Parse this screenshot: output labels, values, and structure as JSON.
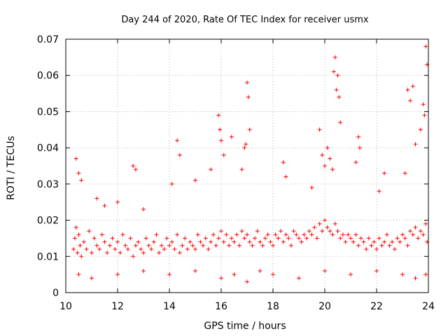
{
  "chart_data": {
    "type": "scatter",
    "title": "Day 244 of 2020, Rate Of TEC Index for receiver usmx",
    "xlabel": "GPS time / hours",
    "ylabel": "ROTI / TECUs",
    "xlim": [
      10,
      24
    ],
    "ylim": [
      0,
      0.07
    ],
    "x_ticks": [
      10,
      12,
      14,
      16,
      18,
      20,
      22,
      24
    ],
    "x_tick_labels": [
      "10",
      "12",
      "14",
      "16",
      "18",
      "20",
      "22",
      "24"
    ],
    "y_ticks": [
      0,
      0.01,
      0.02,
      0.03,
      0.04,
      0.05,
      0.06,
      0.07
    ],
    "y_tick_labels": [
      "0",
      "0.01",
      "0.02",
      "0.03",
      "0.04",
      "0.05",
      "0.06",
      "0.07"
    ],
    "grid": true,
    "marker": "+",
    "series": [
      {
        "name": "ROTI",
        "color": "#ff0000",
        "x": [
          10.3,
          10.35,
          10.4,
          10.45,
          10.5,
          10.55,
          10.6,
          10.7,
          10.8,
          10.9,
          11.0,
          11.1,
          11.2,
          11.3,
          11.4,
          11.5,
          11.6,
          11.7,
          11.8,
          11.9,
          12.0,
          12.1,
          12.2,
          12.3,
          12.4,
          12.5,
          12.6,
          12.7,
          12.8,
          12.9,
          13.0,
          13.1,
          13.2,
          13.3,
          13.4,
          13.5,
          13.6,
          13.7,
          13.8,
          13.9,
          14.0,
          14.1,
          14.2,
          14.3,
          14.4,
          14.5,
          14.6,
          14.7,
          14.8,
          14.9,
          15.0,
          15.1,
          15.2,
          15.3,
          15.4,
          15.5,
          15.6,
          15.7,
          15.8,
          15.9,
          16.0,
          16.1,
          16.2,
          16.3,
          16.4,
          16.5,
          16.6,
          16.7,
          16.8,
          16.9,
          17.0,
          17.1,
          17.2,
          17.3,
          17.4,
          17.5,
          17.6,
          17.7,
          17.8,
          17.9,
          18.0,
          18.1,
          18.2,
          18.3,
          18.4,
          18.5,
          18.6,
          18.7,
          18.8,
          18.9,
          19.0,
          19.1,
          19.2,
          19.3,
          19.4,
          19.5,
          19.6,
          19.7,
          19.8,
          19.9,
          20.0,
          20.1,
          20.2,
          20.3,
          20.4,
          20.5,
          20.6,
          20.7,
          20.8,
          20.9,
          21.0,
          21.1,
          21.2,
          21.3,
          21.4,
          21.5,
          21.6,
          21.7,
          21.8,
          21.9,
          22.0,
          22.1,
          22.2,
          22.3,
          22.4,
          22.5,
          22.6,
          22.7,
          22.8,
          22.9,
          23.0,
          23.1,
          23.2,
          23.3,
          23.4,
          23.5,
          23.6,
          23.7,
          23.8,
          23.9,
          23.95,
          10.4,
          10.5,
          10.6,
          11.2,
          11.5,
          12.0,
          12.6,
          12.7,
          13.0,
          14.1,
          14.3,
          14.4,
          15.0,
          15.6,
          15.9,
          15.95,
          16.0,
          16.1,
          16.4,
          16.8,
          16.9,
          16.95,
          17.0,
          17.05,
          17.1,
          18.4,
          18.5,
          19.5,
          19.8,
          19.9,
          20.0,
          20.1,
          20.2,
          20.3,
          20.35,
          20.4,
          20.45,
          20.5,
          20.55,
          20.6,
          21.2,
          21.3,
          21.35,
          22.1,
          22.3,
          23.1,
          23.2,
          23.3,
          23.4,
          23.5,
          23.7,
          23.8,
          23.85,
          23.9,
          23.95,
          10.5,
          11.0,
          12.0,
          13.0,
          14.0,
          15.0,
          16.0,
          16.5,
          17.0,
          17.5,
          18.0,
          19.0,
          20.0,
          21.0,
          22.0,
          23.0,
          23.5,
          23.9
        ],
        "y": [
          0.012,
          0.015,
          0.018,
          0.011,
          0.016,
          0.013,
          0.01,
          0.014,
          0.012,
          0.017,
          0.011,
          0.015,
          0.013,
          0.012,
          0.016,
          0.014,
          0.011,
          0.013,
          0.015,
          0.012,
          0.014,
          0.011,
          0.016,
          0.013,
          0.012,
          0.015,
          0.01,
          0.013,
          0.014,
          0.012,
          0.011,
          0.015,
          0.013,
          0.012,
          0.014,
          0.016,
          0.011,
          0.013,
          0.012,
          0.015,
          0.013,
          0.014,
          0.012,
          0.016,
          0.011,
          0.013,
          0.015,
          0.012,
          0.014,
          0.013,
          0.012,
          0.016,
          0.014,
          0.013,
          0.015,
          0.012,
          0.014,
          0.016,
          0.013,
          0.015,
          0.017,
          0.014,
          0.016,
          0.013,
          0.015,
          0.014,
          0.016,
          0.013,
          0.017,
          0.015,
          0.016,
          0.014,
          0.013,
          0.015,
          0.017,
          0.014,
          0.013,
          0.015,
          0.016,
          0.014,
          0.013,
          0.016,
          0.015,
          0.017,
          0.014,
          0.016,
          0.015,
          0.013,
          0.017,
          0.016,
          0.015,
          0.014,
          0.016,
          0.015,
          0.017,
          0.016,
          0.018,
          0.015,
          0.019,
          0.017,
          0.02,
          0.018,
          0.017,
          0.016,
          0.019,
          0.017,
          0.015,
          0.016,
          0.014,
          0.016,
          0.015,
          0.014,
          0.016,
          0.013,
          0.015,
          0.014,
          0.012,
          0.015,
          0.013,
          0.014,
          0.012,
          0.015,
          0.013,
          0.014,
          0.016,
          0.013,
          0.014,
          0.012,
          0.015,
          0.014,
          0.016,
          0.015,
          0.013,
          0.017,
          0.016,
          0.018,
          0.015,
          0.017,
          0.016,
          0.019,
          0.014,
          0.037,
          0.033,
          0.031,
          0.026,
          0.024,
          0.025,
          0.035,
          0.034,
          0.023,
          0.03,
          0.042,
          0.038,
          0.031,
          0.034,
          0.049,
          0.045,
          0.042,
          0.038,
          0.043,
          0.034,
          0.04,
          0.041,
          0.058,
          0.054,
          0.045,
          0.036,
          0.032,
          0.029,
          0.045,
          0.038,
          0.035,
          0.04,
          0.037,
          0.034,
          0.061,
          0.065,
          0.056,
          0.06,
          0.054,
          0.047,
          0.036,
          0.043,
          0.04,
          0.028,
          0.033,
          0.033,
          0.056,
          0.053,
          0.057,
          0.041,
          0.045,
          0.052,
          0.049,
          0.068,
          0.063,
          0.005,
          0.004,
          0.005,
          0.006,
          0.005,
          0.006,
          0.004,
          0.005,
          0.003,
          0.006,
          0.005,
          0.004,
          0.006,
          0.005,
          0.006,
          0.005,
          0.004,
          0.005
        ]
      }
    ]
  }
}
